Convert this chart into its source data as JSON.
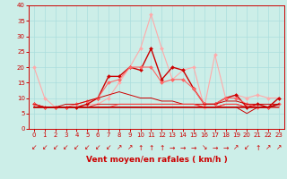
{
  "title": "",
  "xlabel": "Vent moyen/en rafales ( km/h )",
  "background_color": "#cceee8",
  "grid_color": "#aadddd",
  "xlim": [
    -0.5,
    23.5
  ],
  "ylim": [
    0,
    40
  ],
  "yticks": [
    0,
    5,
    10,
    15,
    20,
    25,
    30,
    35,
    40
  ],
  "xticks": [
    0,
    1,
    2,
    3,
    4,
    5,
    6,
    7,
    8,
    9,
    10,
    11,
    12,
    13,
    14,
    15,
    16,
    17,
    18,
    19,
    20,
    21,
    22,
    23
  ],
  "series": [
    {
      "y": [
        20,
        10,
        7,
        7,
        7,
        8,
        8,
        10,
        15,
        20,
        26,
        37,
        26,
        16,
        19,
        20,
        7,
        24,
        10,
        11,
        10,
        11,
        10,
        10
      ],
      "color": "#ffaaaa",
      "lw": 0.8,
      "marker": "D",
      "ms": 2.0
    },
    {
      "y": [
        8,
        7,
        7,
        7,
        7,
        8,
        10,
        17,
        17,
        20,
        19,
        26,
        16,
        20,
        19,
        13,
        8,
        8,
        10,
        11,
        7,
        8,
        7,
        10
      ],
      "color": "#cc0000",
      "lw": 1.0,
      "marker": "D",
      "ms": 2.0
    },
    {
      "y": [
        8,
        7,
        7,
        7,
        8,
        9,
        10,
        15,
        16,
        20,
        20,
        20,
        15,
        16,
        16,
        13,
        8,
        8,
        10,
        10,
        8,
        7,
        7,
        8
      ],
      "color": "#ff6666",
      "lw": 0.8,
      "marker": "D",
      "ms": 2.0
    },
    {
      "y": [
        8,
        7,
        7,
        8,
        8,
        9,
        10,
        11,
        12,
        11,
        10,
        10,
        9,
        9,
        8,
        8,
        8,
        8,
        9,
        9,
        8,
        8,
        8,
        8
      ],
      "color": "#cc0000",
      "lw": 0.7,
      "marker": null,
      "ms": 0
    },
    {
      "y": [
        8,
        7,
        7,
        7,
        7,
        7,
        8,
        8,
        8,
        8,
        8,
        8,
        8,
        8,
        8,
        8,
        7,
        7,
        8,
        8,
        7,
        7,
        7,
        7
      ],
      "color": "#dd2222",
      "lw": 0.7,
      "marker": null,
      "ms": 0
    },
    {
      "y": [
        7,
        7,
        7,
        7,
        7,
        7,
        7,
        7,
        8,
        8,
        8,
        8,
        8,
        8,
        8,
        8,
        7,
        7,
        8,
        8,
        7,
        7,
        7,
        8
      ],
      "color": "#ff4444",
      "lw": 0.7,
      "marker": null,
      "ms": 0
    },
    {
      "y": [
        7,
        7,
        7,
        7,
        7,
        7,
        7,
        7,
        7,
        7,
        7,
        7,
        7,
        7,
        7,
        7,
        7,
        7,
        7,
        7,
        5,
        7,
        7,
        7
      ],
      "color": "#cc0000",
      "lw": 0.7,
      "marker": null,
      "ms": 0
    },
    {
      "y": [
        7,
        7,
        7,
        7,
        7,
        7,
        7,
        7,
        7,
        7,
        7,
        7,
        7,
        7,
        7,
        7,
        7,
        7,
        7,
        7,
        7,
        7,
        7,
        8
      ],
      "color": "#bb0000",
      "lw": 1.2,
      "marker": null,
      "ms": 0
    }
  ],
  "wind_chars": [
    "↙",
    "↙",
    "↙",
    "↙",
    "↙",
    "↙",
    "↙",
    "↙",
    "↗",
    "↗",
    "↑",
    "↑",
    "↑",
    "→",
    "→",
    "→",
    "↘",
    "→",
    "→",
    "↗",
    "↙",
    "↑",
    "↗",
    "↗"
  ]
}
